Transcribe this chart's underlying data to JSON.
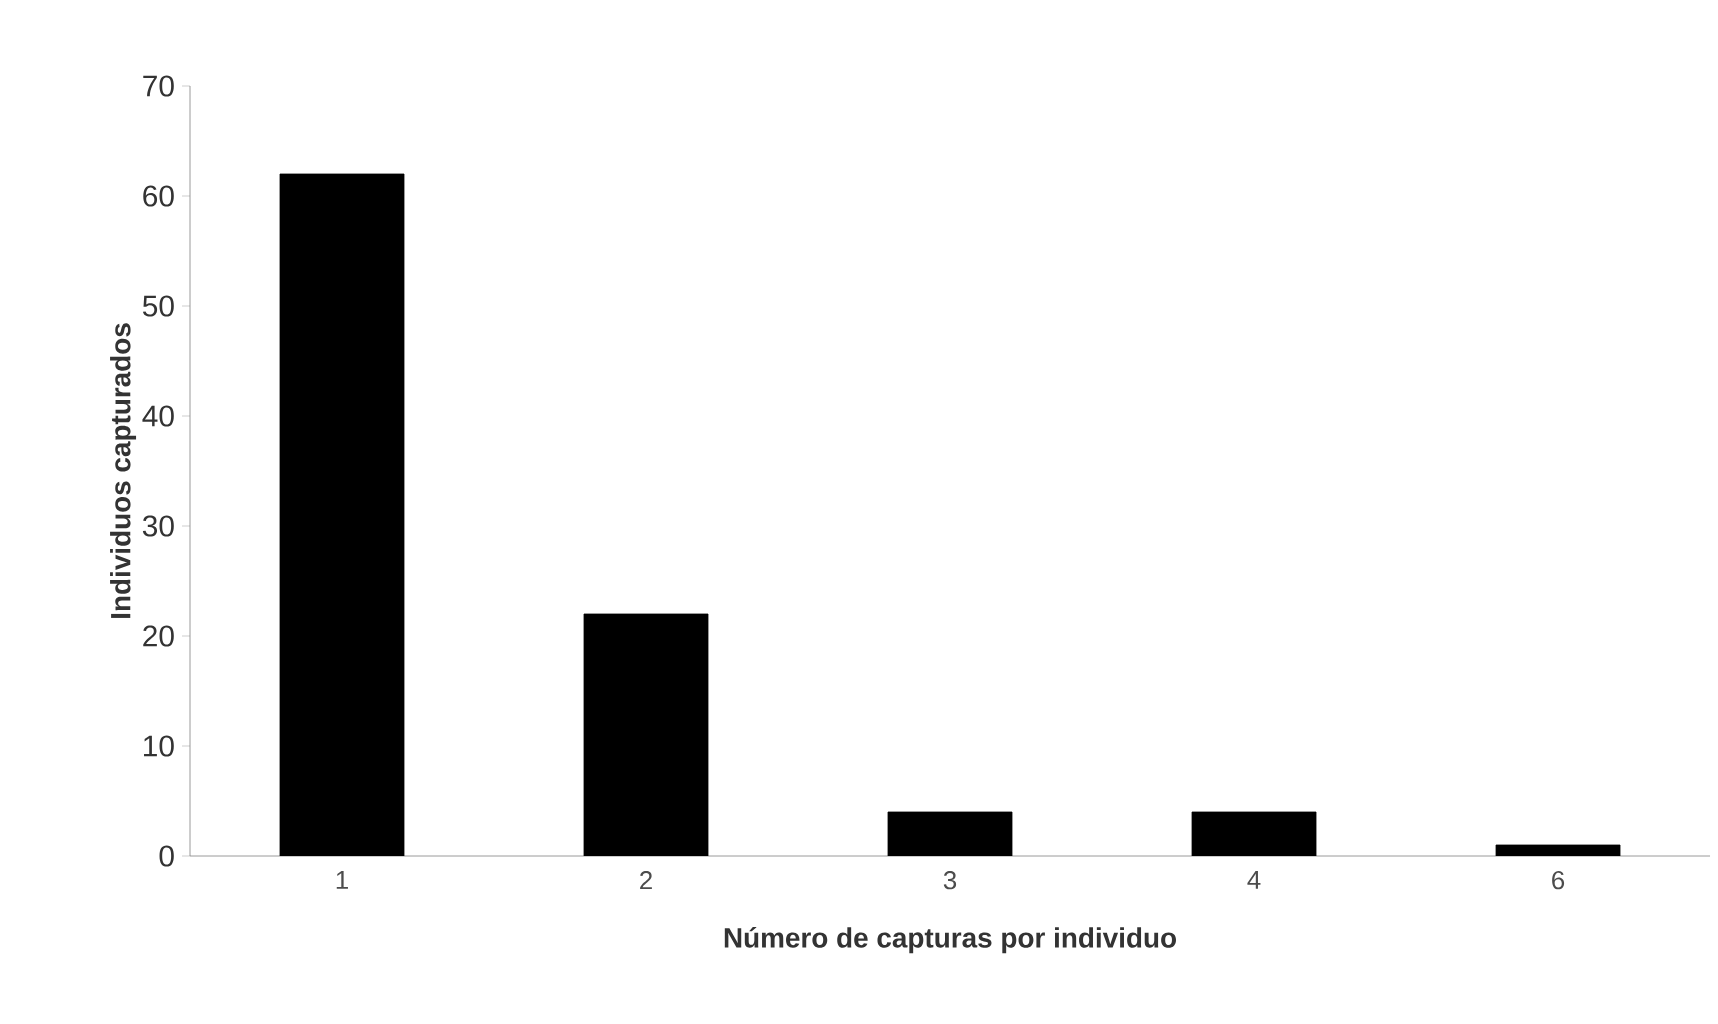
{
  "chart_data": {
    "type": "bar",
    "xlabel": "Número de capturas por individuo",
    "ylabel": "Individuos capturados",
    "categories": [
      "1",
      "2",
      "3",
      "4",
      "6"
    ],
    "values": [
      62,
      22,
      4,
      4,
      1
    ],
    "color": "#000000",
    "ylim": [
      0,
      70
    ],
    "yticks": [
      0,
      10,
      20,
      30,
      40,
      50,
      60,
      70
    ],
    "grid": false
  }
}
